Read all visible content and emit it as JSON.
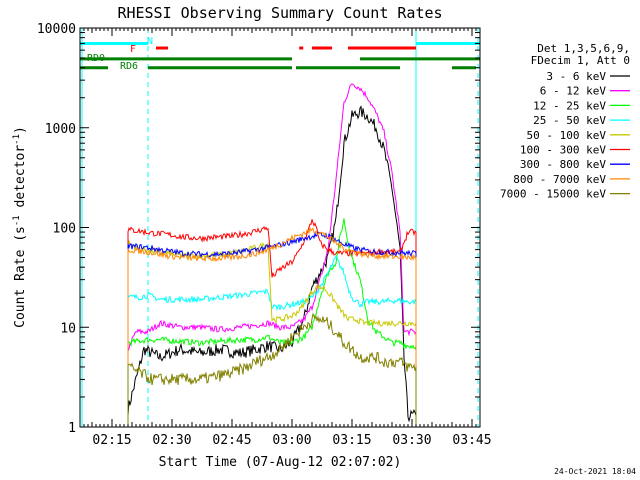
{
  "chart_data": {
    "type": "line",
    "title": "RHESSI Observing Summary Count Rates",
    "xlabel": "Start Time (07-Aug-12 02:07:02)",
    "ylabel_parts": {
      "main": "Count Rate (s",
      "exp": "-1",
      "tail": " detector",
      "exp2": "-1",
      "close": ")"
    },
    "yscale": "log",
    "ylim": [
      1,
      10000
    ],
    "xlim_minutes": [
      0,
      100
    ],
    "x_ticks": [
      {
        "minute": 8,
        "label": "02:15"
      },
      {
        "minute": 23,
        "label": "02:30"
      },
      {
        "minute": 38,
        "label": "02:45"
      },
      {
        "minute": 53,
        "label": "03:00"
      },
      {
        "minute": 68,
        "label": "03:15"
      },
      {
        "minute": 83,
        "label": "03:30"
      },
      {
        "minute": 98,
        "label": "03:45"
      }
    ],
    "y_ticks": [
      {
        "value": 1,
        "label": "1"
      },
      {
        "value": 10,
        "label": "10"
      },
      {
        "value": 100,
        "label": "100"
      },
      {
        "value": 1000,
        "label": "1000"
      },
      {
        "value": 10000,
        "label": "10000"
      }
    ],
    "legend_header": [
      "Det 1,3,5,6,9,",
      "FDecim 1, Att 0"
    ],
    "legend_position": "right",
    "series": [
      {
        "name": "3 - 6 keV",
        "color": "#000000",
        "points": [
          [
            12,
            1.5
          ],
          [
            14,
            3
          ],
          [
            16,
            6
          ],
          [
            20,
            5
          ],
          [
            25,
            6
          ],
          [
            30,
            5.5
          ],
          [
            35,
            6
          ],
          [
            40,
            5.5
          ],
          [
            44,
            6
          ],
          [
            47,
            6.5
          ],
          [
            50,
            6
          ],
          [
            53,
            7
          ],
          [
            56,
            12
          ],
          [
            58,
            25
          ],
          [
            60,
            35
          ],
          [
            62,
            50
          ],
          [
            64,
            120
          ],
          [
            66,
            700
          ],
          [
            68,
            1300
          ],
          [
            70,
            1450
          ],
          [
            72,
            1300
          ],
          [
            74,
            1000
          ],
          [
            76,
            600
          ],
          [
            78,
            250
          ],
          [
            80,
            60
          ],
          [
            81,
            5
          ],
          [
            82,
            1.3
          ],
          [
            84,
            1.3
          ]
        ]
      },
      {
        "name": "6 - 12 keV",
        "color": "#ff00ff",
        "points": [
          [
            12,
            6
          ],
          [
            14,
            9
          ],
          [
            17,
            9
          ],
          [
            20,
            11
          ],
          [
            25,
            10
          ],
          [
            30,
            10
          ],
          [
            35,
            9.5
          ],
          [
            40,
            10
          ],
          [
            44,
            10.5
          ],
          [
            47,
            11
          ],
          [
            50,
            10
          ],
          [
            53,
            10
          ],
          [
            56,
            12
          ],
          [
            58,
            16
          ],
          [
            60,
            30
          ],
          [
            62,
            60
          ],
          [
            64,
            300
          ],
          [
            66,
            1800
          ],
          [
            68,
            2800
          ],
          [
            70,
            2500
          ],
          [
            72,
            2000
          ],
          [
            74,
            1400
          ],
          [
            76,
            900
          ],
          [
            78,
            350
          ],
          [
            80,
            90
          ],
          [
            81,
            9
          ],
          [
            82,
            9
          ],
          [
            84,
            9
          ]
        ]
      },
      {
        "name": "12 - 25 keV",
        "color": "#00ff00",
        "points": [
          [
            12,
            7
          ],
          [
            17,
            7.5
          ],
          [
            20,
            7.5
          ],
          [
            30,
            7
          ],
          [
            40,
            7.5
          ],
          [
            44,
            7.5
          ],
          [
            47,
            8
          ],
          [
            50,
            7
          ],
          [
            53,
            7
          ],
          [
            56,
            8
          ],
          [
            58,
            10
          ],
          [
            60,
            20
          ],
          [
            62,
            35
          ],
          [
            64,
            45
          ],
          [
            65,
            80
          ],
          [
            66,
            120
          ],
          [
            67,
            70
          ],
          [
            68,
            50
          ],
          [
            70,
            30
          ],
          [
            72,
            12
          ],
          [
            74,
            9
          ],
          [
            76,
            8
          ],
          [
            78,
            7
          ],
          [
            80,
            7
          ],
          [
            82,
            6.5
          ],
          [
            84,
            6.5
          ]
        ]
      },
      {
        "name": "25 - 50 keV",
        "color": "#00ffff",
        "points": [
          [
            12,
            20
          ],
          [
            15,
            20
          ],
          [
            17,
            21
          ],
          [
            20,
            19
          ],
          [
            25,
            19
          ],
          [
            30,
            19
          ],
          [
            35,
            20
          ],
          [
            40,
            21
          ],
          [
            44,
            22
          ],
          [
            47,
            23
          ],
          [
            48,
            16
          ],
          [
            50,
            16
          ],
          [
            53,
            17
          ],
          [
            56,
            18
          ],
          [
            58,
            20
          ],
          [
            60,
            25
          ],
          [
            62,
            35
          ],
          [
            64,
            50
          ],
          [
            66,
            35
          ],
          [
            67,
            25
          ],
          [
            68,
            20
          ],
          [
            70,
            17
          ],
          [
            72,
            18
          ],
          [
            74,
            18
          ],
          [
            76,
            18
          ],
          [
            78,
            18.5
          ],
          [
            80,
            18.5
          ],
          [
            82,
            18
          ],
          [
            84,
            18
          ]
        ]
      },
      {
        "name": "50 - 100 keV",
        "color": "#c8c800",
        "points": [
          [
            12,
            70
          ],
          [
            15,
            60
          ],
          [
            18,
            58
          ],
          [
            22,
            55
          ],
          [
            26,
            52
          ],
          [
            30,
            52
          ],
          [
            34,
            53
          ],
          [
            38,
            55
          ],
          [
            42,
            60
          ],
          [
            44,
            63
          ],
          [
            47,
            68
          ],
          [
            48,
            12
          ],
          [
            50,
            12
          ],
          [
            53,
            13
          ],
          [
            55,
            15
          ],
          [
            57,
            20
          ],
          [
            59,
            25
          ],
          [
            61,
            25
          ],
          [
            63,
            20
          ],
          [
            65,
            15
          ],
          [
            67,
            12
          ],
          [
            69,
            12
          ],
          [
            71,
            11
          ],
          [
            73,
            11
          ],
          [
            76,
            11
          ],
          [
            78,
            11
          ],
          [
            80,
            11
          ],
          [
            82,
            11
          ],
          [
            84,
            11
          ]
        ]
      },
      {
        "name": "100 - 300 keV",
        "color": "#ff0000",
        "points": [
          [
            12,
            95
          ],
          [
            15,
            92
          ],
          [
            18,
            88
          ],
          [
            22,
            85
          ],
          [
            26,
            80
          ],
          [
            30,
            78
          ],
          [
            34,
            80
          ],
          [
            38,
            82
          ],
          [
            42,
            88
          ],
          [
            44,
            92
          ],
          [
            47,
            100
          ],
          [
            48,
            32
          ],
          [
            50,
            38
          ],
          [
            53,
            45
          ],
          [
            55,
            60
          ],
          [
            57,
            90
          ],
          [
            58,
            120
          ],
          [
            59,
            100
          ],
          [
            60,
            70
          ],
          [
            62,
            60
          ],
          [
            64,
            55
          ],
          [
            66,
            55
          ],
          [
            68,
            55
          ],
          [
            70,
            55
          ],
          [
            72,
            55
          ],
          [
            74,
            57
          ],
          [
            76,
            57
          ],
          [
            78,
            57
          ],
          [
            80,
            56
          ],
          [
            82,
            90
          ],
          [
            84,
            90
          ]
        ]
      },
      {
        "name": "300 - 800 keV",
        "color": "#0000ff",
        "points": [
          [
            12,
            65
          ],
          [
            15,
            64
          ],
          [
            18,
            62
          ],
          [
            22,
            58
          ],
          [
            26,
            55
          ],
          [
            30,
            54
          ],
          [
            34,
            54
          ],
          [
            38,
            55
          ],
          [
            42,
            58
          ],
          [
            44,
            60
          ],
          [
            47,
            63
          ],
          [
            50,
            67
          ],
          [
            53,
            72
          ],
          [
            56,
            78
          ],
          [
            58,
            82
          ],
          [
            60,
            85
          ],
          [
            62,
            82
          ],
          [
            64,
            75
          ],
          [
            66,
            68
          ],
          [
            68,
            63
          ],
          [
            70,
            60
          ],
          [
            72,
            58
          ],
          [
            74,
            57
          ],
          [
            76,
            57
          ],
          [
            78,
            56
          ],
          [
            80,
            56
          ],
          [
            82,
            55
          ],
          [
            84,
            55
          ]
        ]
      },
      {
        "name": "800 - 7000 keV",
        "color": "#ff8800",
        "points": [
          [
            12,
            60
          ],
          [
            15,
            58
          ],
          [
            18,
            56
          ],
          [
            22,
            52
          ],
          [
            26,
            50
          ],
          [
            30,
            49
          ],
          [
            34,
            49
          ],
          [
            38,
            50
          ],
          [
            42,
            53
          ],
          [
            44,
            55
          ],
          [
            47,
            60
          ],
          [
            50,
            68
          ],
          [
            53,
            78
          ],
          [
            56,
            88
          ],
          [
            58,
            95
          ],
          [
            60,
            90
          ],
          [
            62,
            80
          ],
          [
            64,
            70
          ],
          [
            66,
            62
          ],
          [
            68,
            58
          ],
          [
            70,
            55
          ],
          [
            72,
            53
          ],
          [
            74,
            52
          ],
          [
            76,
            52
          ],
          [
            78,
            51
          ],
          [
            80,
            51
          ],
          [
            82,
            50
          ],
          [
            84,
            50
          ]
        ]
      },
      {
        "name": "7000 - 15000 keV",
        "color": "#808000",
        "points": [
          [
            12,
            4
          ],
          [
            15,
            3.5
          ],
          [
            18,
            3
          ],
          [
            22,
            3
          ],
          [
            26,
            3
          ],
          [
            30,
            3
          ],
          [
            34,
            3.2
          ],
          [
            38,
            3.5
          ],
          [
            42,
            4
          ],
          [
            44,
            4.5
          ],
          [
            47,
            5
          ],
          [
            50,
            6
          ],
          [
            53,
            8
          ],
          [
            56,
            10
          ],
          [
            58,
            12
          ],
          [
            60,
            12
          ],
          [
            62,
            11
          ],
          [
            64,
            9
          ],
          [
            66,
            7
          ],
          [
            68,
            6
          ],
          [
            70,
            5
          ],
          [
            72,
            5
          ],
          [
            74,
            5
          ],
          [
            76,
            4.5
          ],
          [
            78,
            4.5
          ],
          [
            80,
            4.5
          ],
          [
            82,
            4
          ],
          [
            84,
            4
          ]
        ]
      }
    ],
    "state_bars": {
      "N": {
        "label": "N",
        "color": "#00ffff",
        "level_value": 7000,
        "spans": [
          [
            0,
            17
          ],
          [
            84,
            100
          ]
        ]
      },
      "F": {
        "label": "F",
        "color": "#ff0000",
        "level_value": 6300,
        "spans": [
          [
            19,
            22
          ],
          [
            58,
            63
          ],
          [
            67,
            84
          ]
        ],
        "dots": [
          55.3
        ]
      },
      "RD0": {
        "label": "RD0",
        "color": "#008000",
        "level_value": 4900,
        "spans": [
          [
            0,
            53
          ],
          [
            70,
            100
          ]
        ],
        "gaps": []
      },
      "RD6": {
        "label": "RD6",
        "color": "#008000",
        "level_value": 4000,
        "spans": [
          [
            0,
            7
          ],
          [
            17,
            53
          ],
          [
            54,
            80
          ],
          [
            93,
            99
          ]
        ]
      }
    },
    "vertical_markers": [
      {
        "minute": 0.5,
        "style": "solid",
        "color": "#00ffff"
      },
      {
        "minute": 17,
        "style": "dashed",
        "color": "#00ffff"
      },
      {
        "minute": 84,
        "style": "solid",
        "color": "#00ffff"
      },
      {
        "minute": 99.5,
        "style": "dashed",
        "color": "#00ffff"
      }
    ]
  },
  "timestamp": "24-Oct-2021 18:04"
}
